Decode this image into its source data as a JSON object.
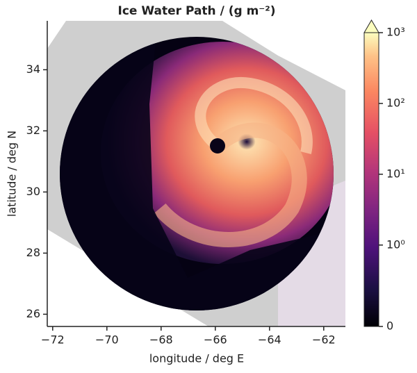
{
  "chart_data": {
    "type": "image",
    "title": "Ice Water Path / (g m⁻²)",
    "x_label": "longitude / deg E",
    "y_label": "latitude / deg N",
    "xlim": [
      -72.2,
      -61.2
    ],
    "ylim": [
      25.6,
      35.6
    ],
    "xticks": [
      {
        "value": -72,
        "label": "−72"
      },
      {
        "value": -70,
        "label": "−70"
      },
      {
        "value": -68,
        "label": "−68"
      },
      {
        "value": -66,
        "label": "−66"
      },
      {
        "value": -64,
        "label": "−64"
      },
      {
        "value": -62,
        "label": "−62"
      }
    ],
    "yticks": [
      26,
      28,
      30,
      32,
      34
    ],
    "colorbar": {
      "scale": "symlog",
      "cmap": "magma",
      "extend": "max",
      "lim": [
        0,
        1000
      ],
      "ticks": [
        0,
        {
          "value": 1,
          "label": "10⁰"
        },
        {
          "value": 10,
          "label": "10¹"
        },
        {
          "value": 100,
          "label": "10²"
        },
        {
          "value": 1000,
          "label": "10³"
        }
      ]
    }
  }
}
